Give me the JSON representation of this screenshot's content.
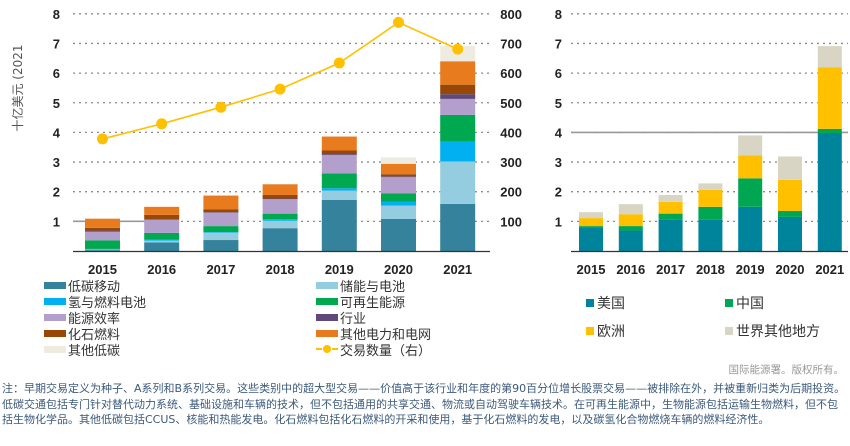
{
  "chart_data": [
    {
      "type": "bar",
      "stacked": true,
      "title": "",
      "ylabel": "十亿美元 (2021",
      "ylabel_right": "",
      "categories": [
        "2015",
        "2016",
        "2017",
        "2018",
        "2019",
        "2020",
        "2021"
      ],
      "ylim": [
        0,
        8
      ],
      "yticks": [
        1,
        2,
        3,
        4,
        5,
        6,
        7,
        8
      ],
      "y2lim": [
        0,
        800
      ],
      "y2ticks": [
        100,
        200,
        300,
        400,
        500,
        600,
        700,
        800
      ],
      "grid": true,
      "series": [
        {
          "name": "低碳移动",
          "color": "#35829c",
          "values": [
            0.03,
            0.29,
            0.37,
            0.77,
            1.72,
            1.08,
            1.59
          ]
        },
        {
          "name": "储能与电池",
          "color": "#94cde0",
          "values": [
            0.03,
            0.06,
            0.25,
            0.25,
            0.32,
            0.45,
            1.43
          ]
        },
        {
          "name": "氢与燃料电池",
          "color": "#00b0f0",
          "values": [
            0.01,
            0.04,
            0.02,
            0.05,
            0.08,
            0.14,
            0.67
          ]
        },
        {
          "name": "可再生能源",
          "color": "#00a84f",
          "values": [
            0.29,
            0.22,
            0.2,
            0.19,
            0.5,
            0.27,
            0.9
          ]
        },
        {
          "name": "能源效率",
          "color": "#b29fcc",
          "values": [
            0.29,
            0.45,
            0.45,
            0.49,
            0.62,
            0.55,
            0.54
          ]
        },
        {
          "name": "行业",
          "color": "#60497a",
          "values": [
            0.04,
            0.02,
            0.02,
            0.02,
            0.03,
            0.03,
            0.16
          ]
        },
        {
          "name": "化石燃料",
          "color": "#974706",
          "values": [
            0.09,
            0.14,
            0.1,
            0.12,
            0.12,
            0.07,
            0.32
          ]
        },
        {
          "name": "其他电力和电网",
          "color": "#e87b1e",
          "values": [
            0.31,
            0.27,
            0.46,
            0.36,
            0.47,
            0.35,
            0.79
          ]
        },
        {
          "name": "其他低碳",
          "color": "#eeece1",
          "values": [
            0.0,
            0.0,
            0.0,
            0.0,
            0.0,
            0.22,
            0.52
          ]
        }
      ],
      "line_series": {
        "name": "交易数量（右）",
        "color": "#ffc000",
        "axis": "right",
        "values": [
          378,
          429,
          485,
          546,
          634,
          771,
          681
        ]
      }
    },
    {
      "type": "bar",
      "stacked": true,
      "title": "",
      "categories": [
        "2015",
        "2016",
        "2017",
        "2018",
        "2019",
        "2020",
        "2021"
      ],
      "ylim": [
        0,
        8
      ],
      "yticks": [
        1,
        2,
        3,
        4,
        5,
        6,
        7,
        8
      ],
      "grid": true,
      "series": [
        {
          "name": "美国",
          "color": "#00849c",
          "values": [
            0.79,
            0.69,
            1.07,
            1.07,
            1.49,
            1.15,
            3.98
          ]
        },
        {
          "name": "中国",
          "color": "#00a651",
          "values": [
            0.05,
            0.15,
            0.19,
            0.42,
            0.96,
            0.2,
            0.14
          ]
        },
        {
          "name": "欧洲",
          "color": "#ffc000",
          "values": [
            0.27,
            0.4,
            0.4,
            0.57,
            0.77,
            1.05,
            2.08
          ]
        },
        {
          "name": "世界其他地方",
          "color": "#d9d5c4",
          "values": [
            0.2,
            0.34,
            0.23,
            0.22,
            0.68,
            0.79,
            0.71
          ]
        }
      ]
    }
  ],
  "legend_left": {
    "col1": [
      "低碳移动",
      "氢与燃料电池",
      "能源效率",
      "化石燃料",
      "其他低碳"
    ],
    "col2": [
      "储能与电池",
      "可再生能源",
      "行业",
      "其他电力和电网",
      "交易数量（右）"
    ]
  },
  "legend_right": {
    "col1": [
      "美国",
      "欧洲"
    ],
    "col2": [
      "中国",
      "世界其他地方"
    ]
  },
  "credit": "国际能源署。版权所有。",
  "note": "注：早期交易定义为种子、A系列和B系列交易。这些类别中的超大型交易——价值高于该行业和年度的第90百分位增长股票交易——被排除在外，并被重新归类为后期投资。低碳交通包括专门针对替代动力系统、基础设施和车辆的技术，但不包括通用的共享交通、物流或自动驾驶车辆技术。在可再生能源中，生物能源包括运输生物燃料，但不包括生物化学品。其他低碳包括CCUS、核能和热能发电。化石燃料包括化石燃料的开采和使用，基于化石燃料的发电，以及碳氢化合物燃烧车辆的燃料经济性。"
}
